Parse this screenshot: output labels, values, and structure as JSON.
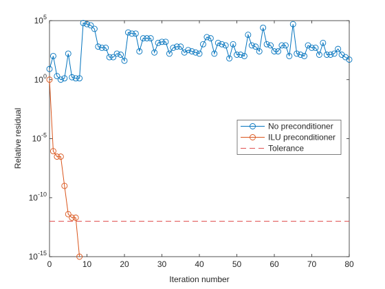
{
  "chart_data": {
    "type": "line",
    "xlabel": "Iteration number",
    "ylabel": "Relative residual",
    "xlim": [
      0,
      80
    ],
    "xticks": [
      0,
      10,
      20,
      30,
      40,
      50,
      60,
      70,
      80
    ],
    "ylim": [
      1e-15,
      100000
    ],
    "yscale": "log",
    "yticks": [
      {
        "value": 1e-15,
        "label": "10^-15"
      },
      {
        "value": 1e-10,
        "label": "10^-10"
      },
      {
        "value": 1e-05,
        "label": "10^-5"
      },
      {
        "value": 1,
        "label": "10^0"
      },
      {
        "value": 100000,
        "label": "10^5"
      }
    ],
    "legend_position": "east",
    "series": [
      {
        "name": "No preconditioner",
        "color": "#0072bd",
        "marker": "circle",
        "dash": false,
        "x": [
          0,
          1,
          2,
          3,
          4,
          5,
          6,
          7,
          8,
          9,
          10,
          11,
          12,
          13,
          14,
          15,
          16,
          17,
          18,
          19,
          20,
          21,
          22,
          23,
          24,
          25,
          26,
          27,
          28,
          29,
          30,
          31,
          32,
          33,
          34,
          35,
          36,
          37,
          38,
          39,
          40,
          41,
          42,
          43,
          44,
          45,
          46,
          47,
          48,
          49,
          50,
          51,
          52,
          53,
          54,
          55,
          56,
          57,
          58,
          59,
          60,
          61,
          62,
          63,
          64,
          65,
          66,
          67,
          68,
          69,
          70,
          71,
          72,
          73,
          74,
          75,
          76,
          77,
          78,
          79,
          80
        ],
        "values": [
          8,
          100,
          2,
          1,
          1.3,
          160,
          1.6,
          1.3,
          1.3,
          63000,
          50000,
          40000,
          20000,
          630,
          500,
          500,
          80,
          80,
          160,
          130,
          40,
          10000,
          8000,
          8000,
          250,
          3200,
          3200,
          3200,
          200,
          1300,
          1600,
          1600,
          160,
          500,
          630,
          630,
          200,
          320,
          250,
          200,
          160,
          1000,
          4000,
          3200,
          160,
          1300,
          1000,
          800,
          63,
          1000,
          130,
          130,
          100,
          6300,
          800,
          630,
          250,
          25000,
          1000,
          800,
          250,
          250,
          800,
          800,
          100,
          50000,
          160,
          130,
          100,
          800,
          500,
          500,
          130,
          1300,
          130,
          130,
          160,
          400,
          130,
          80,
          50
        ]
      },
      {
        "name": "ILU preconditioner",
        "color": "#d95319",
        "marker": "circle",
        "dash": false,
        "x": [
          0,
          1,
          2,
          3,
          4,
          5,
          6,
          7,
          8
        ],
        "values": [
          1,
          8.7e-07,
          3e-07,
          3e-07,
          1e-09,
          4e-12,
          2e-12,
          2e-12,
          1e-15
        ]
      },
      {
        "name": "Tolerance",
        "color": "#e05050",
        "marker": "none",
        "dash": true,
        "x": [
          0,
          80
        ],
        "values": [
          1e-12,
          1e-12
        ]
      }
    ]
  }
}
